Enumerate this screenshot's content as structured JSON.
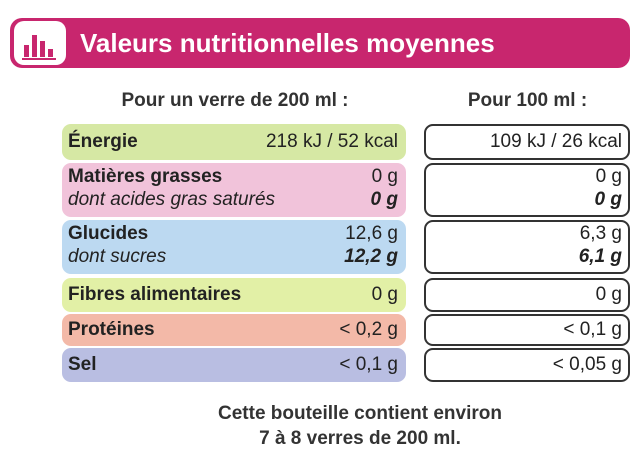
{
  "header": {
    "title": "Valeurs nutritionnelles moyennes"
  },
  "columns": {
    "per_serving": "Pour un verre de 200 ml :",
    "per_100ml": "Pour 100 ml :"
  },
  "rows": [
    {
      "label": "Énergie",
      "per_serving": "218 kJ / 52 kcal",
      "per_100ml": "109 kJ / 26 kcal"
    },
    {
      "label": "Matières grasses",
      "per_serving": "0 g",
      "per_100ml": "0 g",
      "sub": {
        "label": "dont acides gras saturés",
        "per_serving": "0 g",
        "per_100ml": "0 g"
      }
    },
    {
      "label": "Glucides",
      "per_serving": "12,6 g",
      "per_100ml": "6,3 g",
      "sub": {
        "label": "dont sucres",
        "per_serving": "12,2 g",
        "per_100ml": "6,1 g"
      }
    },
    {
      "label": "Fibres alimentaires",
      "per_serving": "0 g",
      "per_100ml": "0 g"
    },
    {
      "label": "Protéines",
      "per_serving": "< 0,2 g",
      "per_100ml": "< 0,1 g"
    },
    {
      "label": "Sel",
      "per_serving": "< 0,1 g",
      "per_100ml": "< 0,05 g"
    }
  ],
  "footer": [
    "Cette bouteille contient environ",
    "7 à 8 verres de 200 ml."
  ]
}
